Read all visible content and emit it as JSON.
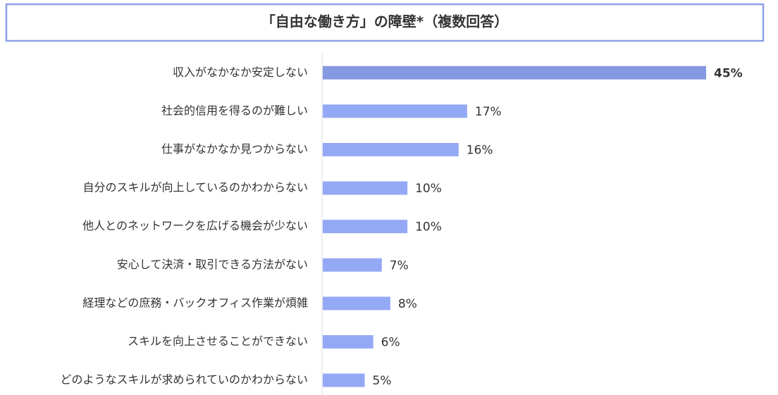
{
  "chart_data": {
    "type": "hbar",
    "title": "「自由な働き方」の障壁*（複数回答）",
    "categories": [
      "収入がなかなか安定しない",
      "社会的信用を得るのが難しい",
      "仕事がなかなか見つからない",
      "自分のスキルが向上しているのかわからない",
      "他人とのネットワークを広げる機会が少ない",
      "安心して決済・取引できる方法がない",
      "経理などの庶務・バックオフィス作業が煩雑",
      "スキルを向上させることができない",
      "どのようなスキルが求められていのかわからない"
    ],
    "values": [
      45,
      17,
      16,
      10,
      10,
      7,
      8,
      6,
      5
    ],
    "value_labels": [
      "45%",
      "17%",
      "16%",
      "10%",
      "10%",
      "7%",
      "8%",
      "6%",
      "5%"
    ],
    "colors": [
      "#8599e2",
      "#94a9f6",
      "#94a9f6",
      "#94a9f6",
      "#94a9f6",
      "#94a9f6",
      "#94a9f6",
      "#94a9f6",
      "#94a9f6"
    ],
    "highlight": 0
  }
}
